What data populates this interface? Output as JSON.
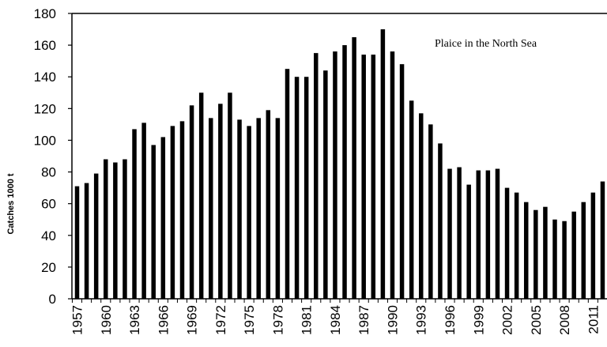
{
  "chart_data": {
    "type": "bar",
    "title": "",
    "annotation": "Plaice in the North Sea",
    "xlabel": "",
    "ylabel": "Catches 1000 t",
    "ylim": [
      0,
      180
    ],
    "yticks": [
      0,
      20,
      40,
      60,
      80,
      100,
      120,
      140,
      160,
      180
    ],
    "xtick_labels": [
      "1957",
      "1960",
      "1963",
      "1966",
      "1969",
      "1972",
      "1975",
      "1978",
      "1981",
      "1984",
      "1987",
      "1990",
      "1993",
      "1996",
      "1999",
      "2002",
      "2005",
      "2008",
      "2011"
    ],
    "grid": false,
    "bar_color": "#000000",
    "categories": [
      1957,
      1958,
      1959,
      1960,
      1961,
      1962,
      1963,
      1964,
      1965,
      1966,
      1967,
      1968,
      1969,
      1970,
      1971,
      1972,
      1973,
      1974,
      1975,
      1976,
      1977,
      1978,
      1979,
      1980,
      1981,
      1982,
      1983,
      1984,
      1985,
      1986,
      1987,
      1988,
      1989,
      1990,
      1991,
      1992,
      1993,
      1994,
      1995,
      1996,
      1997,
      1998,
      1999,
      2000,
      2001,
      2002,
      2003,
      2004,
      2005,
      2006,
      2007,
      2008,
      2009,
      2010,
      2011,
      2012
    ],
    "values": [
      71,
      73,
      79,
      88,
      86,
      88,
      107,
      111,
      97,
      102,
      109,
      112,
      122,
      130,
      114,
      123,
      130,
      113,
      109,
      114,
      119,
      114,
      145,
      140,
      140,
      155,
      144,
      156,
      160,
      165,
      154,
      154,
      170,
      156,
      148,
      125,
      117,
      110,
      98,
      82,
      83,
      72,
      81,
      81,
      82,
      70,
      67,
      61,
      56,
      58,
      50,
      49,
      55,
      61,
      67,
      74
    ]
  }
}
